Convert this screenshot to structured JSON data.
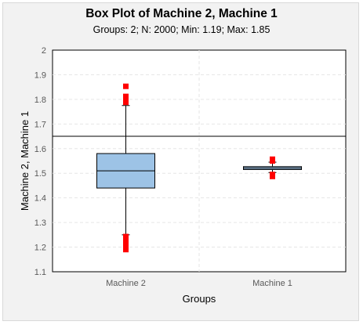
{
  "chart_data": {
    "type": "box",
    "title": "Box Plot of Machine 2, Machine 1",
    "subtitle": "Groups: 2; N: 2000; Min: 1.19; Max: 1.85",
    "xlabel": "Groups",
    "ylabel": "Machine 2, Machine 1",
    "ylim": [
      1.1,
      2.0
    ],
    "yticks": [
      "1.1",
      "1.2",
      "1.3",
      "1.4",
      "1.5",
      "1.6",
      "1.7",
      "1.8",
      "1.9",
      "2"
    ],
    "reference_line": 1.65,
    "grid": true,
    "categories": [
      "Machine 2",
      "Machine 1"
    ],
    "colors": {
      "box_fill": "#9dc3e6",
      "box_stroke": "#000000",
      "outlier": "#ff0000",
      "plot_bg": "#ffffff",
      "chart_bg": "#f2f2f2"
    },
    "boxes": [
      {
        "name": "Machine 2",
        "whisker_low": 1.25,
        "q1": 1.44,
        "median": 1.51,
        "q3": 1.58,
        "whisker_high": 1.775,
        "outliers": [
          1.853,
          1.812,
          1.805,
          1.797,
          1.788,
          1.243,
          1.236,
          1.228,
          1.221,
          1.213,
          1.205,
          1.197,
          1.19
        ]
      },
      {
        "name": "Machine 1",
        "whisker_low": 1.503,
        "q1": 1.515,
        "median": 1.521,
        "q3": 1.527,
        "whisker_high": 1.545,
        "outliers": [
          1.557,
          1.55,
          1.495,
          1.487
        ]
      }
    ]
  }
}
